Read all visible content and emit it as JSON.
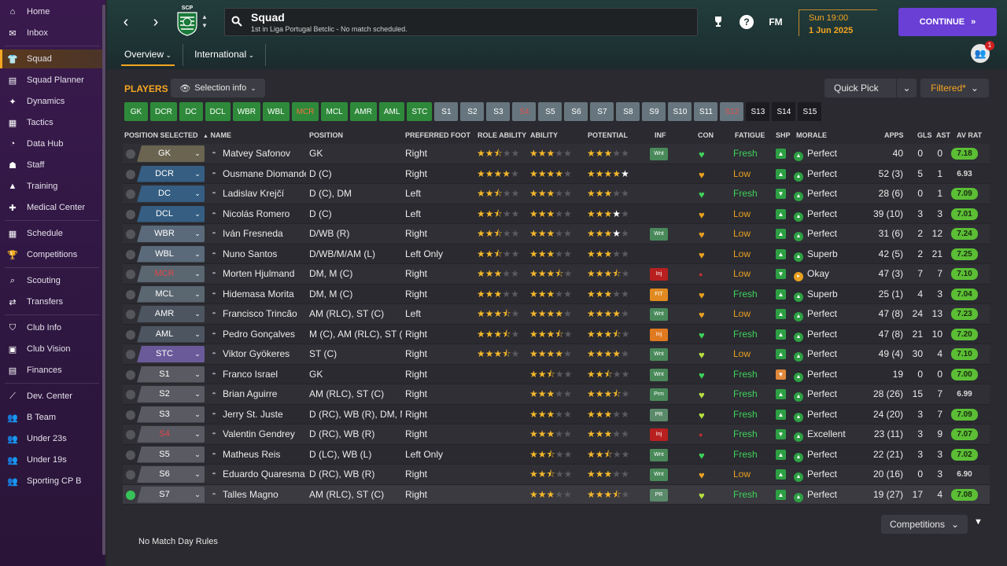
{
  "sidebar": {
    "items": [
      {
        "label": "Home",
        "icon": "home-icon",
        "active": false
      },
      {
        "label": "Inbox",
        "icon": "inbox-icon",
        "active": false
      },
      {
        "label": "Squad",
        "icon": "shirt-icon",
        "active": true
      },
      {
        "label": "Squad Planner",
        "icon": "clipboard-icon",
        "active": false
      },
      {
        "label": "Dynamics",
        "icon": "dynamics-icon",
        "active": false
      },
      {
        "label": "Tactics",
        "icon": "tactics-icon",
        "active": false
      },
      {
        "label": "Data Hub",
        "icon": "datahub-icon",
        "active": false
      },
      {
        "label": "Staff",
        "icon": "staff-icon",
        "active": false
      },
      {
        "label": "Training",
        "icon": "training-icon",
        "active": false
      },
      {
        "label": "Medical Center",
        "icon": "medical-icon",
        "active": false
      },
      {
        "label": "Schedule",
        "icon": "calendar-icon",
        "active": false
      },
      {
        "label": "Competitions",
        "icon": "trophy-icon",
        "active": false
      },
      {
        "label": "Scouting",
        "icon": "scouting-icon",
        "active": false
      },
      {
        "label": "Transfers",
        "icon": "transfers-icon",
        "active": false
      },
      {
        "label": "Club Info",
        "icon": "shield-icon",
        "active": false
      },
      {
        "label": "Club Vision",
        "icon": "briefcase-icon",
        "active": false
      },
      {
        "label": "Finances",
        "icon": "finances-icon",
        "active": false
      },
      {
        "label": "Dev. Center",
        "icon": "devcenter-icon",
        "active": false
      },
      {
        "label": "B Team",
        "icon": "team-icon",
        "active": false
      },
      {
        "label": "Under 23s",
        "icon": "team-icon",
        "active": false
      },
      {
        "label": "Under 19s",
        "icon": "team-icon",
        "active": false
      },
      {
        "label": "Sporting CP B",
        "icon": "team-icon",
        "active": false
      }
    ]
  },
  "header": {
    "crest_text": "SCP",
    "title": "Squad",
    "subtitle": "1st in Liga Portugal Betclic - No match scheduled.",
    "fm_label": "FM",
    "help_label": "?",
    "date_time": "Sun 19:00",
    "date": "1 Jun 2025",
    "continue_label": "CONTINUE",
    "notification_count": "1",
    "tabs": [
      {
        "label": "Overview",
        "selected": true
      },
      {
        "label": "International",
        "selected": false
      }
    ]
  },
  "toolbar": {
    "players_label": "PLAYERS",
    "selection_info_label": "Selection info",
    "quick_pick_label": "Quick Pick",
    "filtered_label": "Filtered*"
  },
  "position_buttons": [
    {
      "label": "GK",
      "style": "g"
    },
    {
      "label": "DCR",
      "style": "g"
    },
    {
      "label": "DC",
      "style": "g"
    },
    {
      "label": "DCL",
      "style": "g"
    },
    {
      "label": "WBR",
      "style": "g"
    },
    {
      "label": "WBL",
      "style": "g"
    },
    {
      "label": "MCR",
      "style": "g r"
    },
    {
      "label": "MCL",
      "style": "g"
    },
    {
      "label": "AMR",
      "style": "g"
    },
    {
      "label": "AML",
      "style": "g"
    },
    {
      "label": "STC",
      "style": "g"
    },
    {
      "label": "S1",
      "style": "gr"
    },
    {
      "label": "S2",
      "style": "gr"
    },
    {
      "label": "S3",
      "style": "gr"
    },
    {
      "label": "S4",
      "style": "gr r"
    },
    {
      "label": "S5",
      "style": "gr"
    },
    {
      "label": "S6",
      "style": "gr"
    },
    {
      "label": "S7",
      "style": "gr"
    },
    {
      "label": "S8",
      "style": "gr"
    },
    {
      "label": "S9",
      "style": "gr"
    },
    {
      "label": "S10",
      "style": "gr"
    },
    {
      "label": "S11",
      "style": "gr"
    },
    {
      "label": "S12",
      "style": "gr r"
    },
    {
      "label": "S13",
      "style": "blk"
    },
    {
      "label": "S14",
      "style": "blk"
    },
    {
      "label": "S15",
      "style": "blk"
    }
  ],
  "table": {
    "columns": {
      "position_selected": "POSITION SELECTED",
      "name": "NAME",
      "position": "POSITION",
      "preferred_foot": "PREFERRED FOOT",
      "role_ability": "ROLE ABILITY",
      "ability": "ABILITY",
      "potential": "POTENTIAL",
      "inf": "INF",
      "con": "CON",
      "fatigue": "FATIGUE",
      "shp": "SHP",
      "morale": "MORALE",
      "apps": "APPS",
      "gls": "GLS",
      "ast": "AST",
      "av_rat": "AV RAT"
    },
    "rows": [
      {
        "pos_sel": "GK",
        "pos_style": "gk",
        "red": false,
        "name": "Matvey Safonov",
        "position": "GK",
        "foot": "Right",
        "role": 2.5,
        "ability": 3,
        "potential": 3,
        "potential_white": 0,
        "inf": "Wnt",
        "inf_style": "wnt",
        "con": "green",
        "fatigue": "Fresh",
        "shp": "up",
        "morale": "Perfect",
        "apps": "40",
        "gls": "0",
        "ast": "0",
        "rating": "7.18",
        "rat_style": "g",
        "checked": false
      },
      {
        "pos_sel": "DCR",
        "pos_style": "d",
        "red": false,
        "name": "Ousmane Diomande",
        "position": "D (C)",
        "foot": "Right",
        "role": 4,
        "ability": 4,
        "potential": 4,
        "potential_white": 1,
        "inf": "",
        "inf_style": "",
        "con": "yellow",
        "fatigue": "Low",
        "shp": "up",
        "morale": "Perfect",
        "apps": "52 (3)",
        "gls": "5",
        "ast": "1",
        "rating": "6.93",
        "rat_style": "n",
        "checked": false
      },
      {
        "pos_sel": "DC",
        "pos_style": "d",
        "red": false,
        "name": "Ladislav Krejčí",
        "position": "D (C), DM",
        "foot": "Left",
        "role": 2.5,
        "ability": 3,
        "potential": 3,
        "potential_white": 0,
        "inf": "",
        "inf_style": "",
        "con": "green",
        "fatigue": "Fresh",
        "shp": "down",
        "morale": "Perfect",
        "apps": "28 (6)",
        "gls": "0",
        "ast": "1",
        "rating": "7.09",
        "rat_style": "g",
        "checked": false
      },
      {
        "pos_sel": "DCL",
        "pos_style": "d",
        "red": false,
        "name": "Nicolás Romero",
        "position": "D (C)",
        "foot": "Left",
        "role": 2.5,
        "ability": 3,
        "potential": 3,
        "potential_white": 1,
        "inf": "",
        "inf_style": "",
        "con": "yellow",
        "fatigue": "Low",
        "shp": "up",
        "morale": "Perfect",
        "apps": "39 (10)",
        "gls": "3",
        "ast": "3",
        "rating": "7.01",
        "rat_style": "g",
        "checked": false
      },
      {
        "pos_sel": "WBR",
        "pos_style": "wb",
        "red": false,
        "name": "Iván Fresneda",
        "position": "D/WB (R)",
        "foot": "Right",
        "role": 2.5,
        "ability": 3,
        "potential": 3,
        "potential_white": 1,
        "inf": "Wnt",
        "inf_style": "wnt",
        "con": "yellow",
        "fatigue": "Low",
        "shp": "up",
        "morale": "Perfect",
        "apps": "31 (6)",
        "gls": "2",
        "ast": "12",
        "rating": "7.24",
        "rat_style": "g",
        "checked": false
      },
      {
        "pos_sel": "WBL",
        "pos_style": "wb",
        "red": false,
        "name": "Nuno Santos",
        "position": "D/WB/M/AM (L)",
        "foot": "Left Only",
        "role": 2.5,
        "ability": 3,
        "potential": 3,
        "potential_white": 0,
        "inf": "",
        "inf_style": "",
        "con": "yellow",
        "fatigue": "Low",
        "shp": "up",
        "morale": "Superb",
        "apps": "42 (5)",
        "gls": "2",
        "ast": "21",
        "rating": "7.25",
        "rat_style": "g",
        "checked": false
      },
      {
        "pos_sel": "MCR",
        "pos_style": "m",
        "red": true,
        "name": "Morten Hjulmand",
        "position": "DM, M (C)",
        "foot": "Right",
        "role": 3,
        "ability": 3.5,
        "potential": 3.5,
        "potential_white": 0,
        "inf": "Inj",
        "inf_style": "inj",
        "con": "red",
        "fatigue": "Low",
        "shp": "down",
        "morale": "Okay",
        "apps": "47 (3)",
        "gls": "7",
        "ast": "7",
        "rating": "7.10",
        "rat_style": "g",
        "checked": false
      },
      {
        "pos_sel": "MCL",
        "pos_style": "m",
        "red": false,
        "name": "Hidemasa Morita",
        "position": "DM, M (C)",
        "foot": "Right",
        "role": 3,
        "ability": 3,
        "potential": 3,
        "potential_white": 0,
        "inf": "FIT",
        "inf_style": "fit",
        "con": "yellow",
        "fatigue": "Fresh",
        "shp": "up",
        "morale": "Superb",
        "apps": "25 (1)",
        "gls": "4",
        "ast": "3",
        "rating": "7.04",
        "rat_style": "g",
        "checked": false
      },
      {
        "pos_sel": "AMR",
        "pos_style": "am",
        "red": false,
        "name": "Francisco Trincão",
        "position": "AM (RLC), ST (C)",
        "foot": "Left",
        "role": 3.5,
        "ability": 4,
        "potential": 4,
        "potential_white": 0,
        "inf": "Wnt",
        "inf_style": "wnt",
        "con": "yellow",
        "fatigue": "Low",
        "shp": "up",
        "morale": "Perfect",
        "apps": "47 (8)",
        "gls": "24",
        "ast": "13",
        "rating": "7.23",
        "rat_style": "g",
        "checked": false
      },
      {
        "pos_sel": "AML",
        "pos_style": "am",
        "red": false,
        "name": "Pedro Gonçalves",
        "position": "M (C), AM (RLC), ST (C)",
        "foot": "Right",
        "role": 3.5,
        "ability": 3.5,
        "potential": 3.5,
        "potential_white": 0,
        "inf": "Inj",
        "inf_style": "injo",
        "con": "green",
        "fatigue": "Fresh",
        "shp": "up",
        "morale": "Perfect",
        "apps": "47 (8)",
        "gls": "21",
        "ast": "10",
        "rating": "7.20",
        "rat_style": "g",
        "checked": false
      },
      {
        "pos_sel": "STC",
        "pos_style": "st",
        "red": false,
        "name": "Viktor Gyökeres",
        "position": "ST (C)",
        "foot": "Right",
        "role": 3.5,
        "ability": 4,
        "potential": 4,
        "potential_white": 0,
        "inf": "Wnt",
        "inf_style": "wnt",
        "con": "lime",
        "fatigue": "Low",
        "shp": "up",
        "morale": "Perfect",
        "apps": "49 (4)",
        "gls": "30",
        "ast": "4",
        "rating": "7.10",
        "rat_style": "g",
        "checked": false
      },
      {
        "pos_sel": "S1",
        "pos_style": "sub",
        "red": false,
        "name": "Franco Israel",
        "position": "GK",
        "foot": "Right",
        "role": 0,
        "ability": 2.5,
        "potential": 2.5,
        "potential_white": 0,
        "inf": "Wnt",
        "inf_style": "wnt",
        "con": "green",
        "fatigue": "Fresh",
        "shp": "orange",
        "morale": "Perfect",
        "apps": "19",
        "gls": "0",
        "ast": "0",
        "rating": "7.00",
        "rat_style": "g",
        "checked": false
      },
      {
        "pos_sel": "S2",
        "pos_style": "sub",
        "red": false,
        "name": "Brian Aguirre",
        "position": "AM (RLC), ST (C)",
        "foot": "Right",
        "role": 0,
        "ability": 3,
        "potential": 3.5,
        "potential_white": 0,
        "inf": "Prm",
        "inf_style": "prm",
        "con": "lime",
        "fatigue": "Fresh",
        "shp": "up",
        "morale": "Perfect",
        "apps": "28 (26)",
        "gls": "15",
        "ast": "7",
        "rating": "6.99",
        "rat_style": "n",
        "checked": false
      },
      {
        "pos_sel": "S3",
        "pos_style": "sub",
        "red": false,
        "name": "Jerry St. Juste",
        "position": "D (RC), WB (R), DM, M...",
        "foot": "Right",
        "role": 0,
        "ability": 3,
        "potential": 3,
        "potential_white": 0,
        "inf": "PR",
        "inf_style": "pr",
        "con": "lime",
        "fatigue": "Fresh",
        "shp": "up",
        "morale": "Perfect",
        "apps": "24 (20)",
        "gls": "3",
        "ast": "7",
        "rating": "7.09",
        "rat_style": "g",
        "checked": false
      },
      {
        "pos_sel": "S4",
        "pos_style": "sub",
        "red": true,
        "name": "Valentin Gendrey",
        "position": "D (RC), WB (R)",
        "foot": "Right",
        "role": 0,
        "ability": 3,
        "potential": 3,
        "potential_white": 0,
        "inf": "Inj",
        "inf_style": "inj",
        "con": "red",
        "fatigue": "Fresh",
        "shp": "down",
        "morale": "Excellent",
        "apps": "23 (11)",
        "gls": "3",
        "ast": "9",
        "rating": "7.07",
        "rat_style": "g",
        "checked": false
      },
      {
        "pos_sel": "S5",
        "pos_style": "sub",
        "red": false,
        "name": "Matheus Reis",
        "position": "D (LC), WB (L)",
        "foot": "Left Only",
        "role": 0,
        "ability": 2.5,
        "potential": 2.5,
        "potential_white": 0,
        "inf": "Wnt",
        "inf_style": "wnt",
        "con": "green",
        "fatigue": "Fresh",
        "shp": "up",
        "morale": "Perfect",
        "apps": "22 (21)",
        "gls": "3",
        "ast": "3",
        "rating": "7.02",
        "rat_style": "g",
        "checked": false
      },
      {
        "pos_sel": "S6",
        "pos_style": "sub",
        "red": false,
        "name": "Eduardo Quaresma",
        "position": "D (RC), WB (R)",
        "foot": "Right",
        "role": 0,
        "ability": 2.5,
        "potential": 3,
        "potential_white": 0,
        "inf": "Wnt",
        "inf_style": "wnt",
        "con": "yellow",
        "fatigue": "Low",
        "shp": "up",
        "morale": "Perfect",
        "apps": "20 (16)",
        "gls": "0",
        "ast": "3",
        "rating": "6.90",
        "rat_style": "n",
        "checked": false
      },
      {
        "pos_sel": "S7",
        "pos_style": "sub",
        "red": false,
        "name": "Talles Magno",
        "position": "AM (RLC), ST (C)",
        "foot": "Right",
        "role": 0,
        "ability": 3,
        "potential": 3.5,
        "potential_white": 0,
        "inf": "PR",
        "inf_style": "pr",
        "con": "lime",
        "fatigue": "Fresh",
        "shp": "up",
        "morale": "Perfect",
        "apps": "19 (27)",
        "gls": "17",
        "ast": "4",
        "rating": "7.08",
        "rat_style": "g",
        "checked": true
      }
    ]
  },
  "footer": {
    "competitions_label": "Competitions",
    "match_day_rules": "No Match Day Rules"
  }
}
